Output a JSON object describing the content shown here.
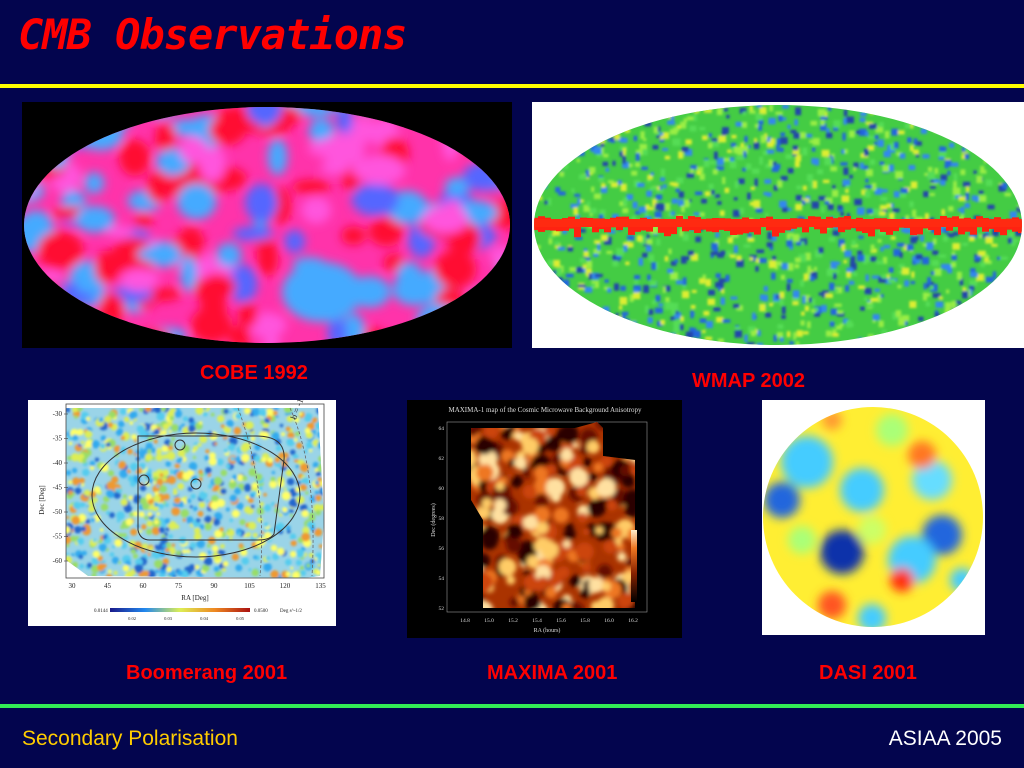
{
  "title": "CMB Observations",
  "captions": {
    "cobe": "COBE 1992",
    "wmap": "WMAP 2002",
    "boomerang": "Boomerang 2001",
    "maxima": "MAXIMA 2001",
    "dasi": "DASI 2001"
  },
  "footer": {
    "left": "Secondary Polarisation",
    "right": "ASIAA 2005"
  },
  "boomerang_plot": {
    "y_label": "Dec [Deg]",
    "x_label": "RA [Deg]",
    "y_ticks": [
      "-30",
      "-35",
      "-40",
      "-45",
      "-50",
      "-55",
      "-60"
    ],
    "x_ticks": [
      "30",
      "45",
      "60",
      "75",
      "90",
      "105",
      "120",
      "135"
    ],
    "curve_label": "b = -10",
    "scale_min": "0.0144",
    "scale_max": "0.0500",
    "scale_unit": "Deg s^-1/2",
    "scale_ticks": [
      "0.02",
      "0.03",
      "0.04",
      "0.05"
    ]
  },
  "maxima_plot": {
    "title": "MAXIMA-1 map of the Cosmic Microwave Background Anisotropy",
    "y_label": "Dec (degrees)",
    "x_label": "RA (hours)",
    "y_ticks": [
      "64",
      "62",
      "60",
      "58",
      "56",
      "54",
      "52"
    ],
    "x_ticks": [
      "14.8",
      "15.0",
      "15.2",
      "15.4",
      "15.6",
      "15.8",
      "16.0",
      "16.2"
    ]
  },
  "colors": {
    "background": "#03054e",
    "title": "#ff0000",
    "caption": "#ff0000",
    "rule_top": "#ffff00",
    "rule_bottom": "#33ee55",
    "footer_left": "#ffcc00",
    "footer_right": "#ffffff"
  }
}
